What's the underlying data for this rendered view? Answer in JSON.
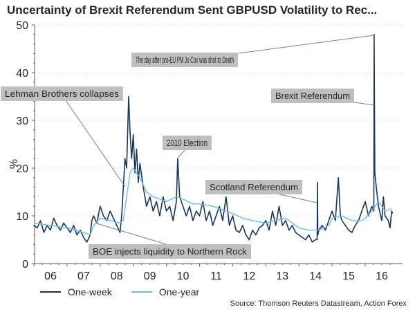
{
  "chart_data": {
    "type": "line",
    "title": "Uncertainty of Brexit Referendum Sent GBPUSD Volatility to Rec...",
    "ylabel": "%",
    "xlabel": "",
    "ylim": [
      0,
      50
    ],
    "yticks": [
      0,
      10,
      20,
      30,
      40,
      50
    ],
    "xlim": [
      2006,
      2016.9
    ],
    "xtick_labels": [
      "06",
      "07",
      "08",
      "09",
      "10",
      "11",
      "12",
      "13",
      "14",
      "15",
      "16"
    ],
    "grid": "horizontal dotted",
    "legend": "bottom",
    "colors": {
      "one_week": "#16365c",
      "one_year": "#6fb7f2",
      "annotation_box": "#bfbfbf"
    },
    "series": [
      {
        "name": "One-week",
        "points": [
          [
            2006.0,
            8
          ],
          [
            2006.1,
            7.5
          ],
          [
            2006.2,
            9
          ],
          [
            2006.3,
            6.5
          ],
          [
            2006.4,
            8
          ],
          [
            2006.5,
            7
          ],
          [
            2006.6,
            9.5
          ],
          [
            2006.7,
            8
          ],
          [
            2006.8,
            7
          ],
          [
            2006.9,
            8.5
          ],
          [
            2007.0,
            7.5
          ],
          [
            2007.1,
            6.5
          ],
          [
            2007.2,
            8
          ],
          [
            2007.3,
            6
          ],
          [
            2007.4,
            7
          ],
          [
            2007.5,
            5.5
          ],
          [
            2007.6,
            4.5
          ],
          [
            2007.7,
            6
          ],
          [
            2007.75,
            9
          ],
          [
            2007.8,
            10
          ],
          [
            2007.9,
            8.5
          ],
          [
            2008.0,
            12
          ],
          [
            2008.1,
            10
          ],
          [
            2008.2,
            9
          ],
          [
            2008.3,
            11
          ],
          [
            2008.4,
            9.5
          ],
          [
            2008.5,
            8
          ],
          [
            2008.6,
            6.5
          ],
          [
            2008.65,
            10
          ],
          [
            2008.7,
            16
          ],
          [
            2008.75,
            22
          ],
          [
            2008.8,
            20
          ],
          [
            2008.86,
            35
          ],
          [
            2008.9,
            28
          ],
          [
            2008.95,
            22
          ],
          [
            2009.0,
            27
          ],
          [
            2009.05,
            19
          ],
          [
            2009.1,
            24
          ],
          [
            2009.15,
            17
          ],
          [
            2009.2,
            21
          ],
          [
            2009.3,
            16
          ],
          [
            2009.4,
            12
          ],
          [
            2009.5,
            14
          ],
          [
            2009.6,
            11
          ],
          [
            2009.7,
            13
          ],
          [
            2009.8,
            10
          ],
          [
            2009.9,
            14
          ],
          [
            2010.0,
            11
          ],
          [
            2010.1,
            12
          ],
          [
            2010.2,
            9
          ],
          [
            2010.3,
            13
          ],
          [
            2010.34,
            22
          ],
          [
            2010.4,
            14
          ],
          [
            2010.5,
            12
          ],
          [
            2010.6,
            10
          ],
          [
            2010.7,
            12
          ],
          [
            2010.8,
            9
          ],
          [
            2010.9,
            11
          ],
          [
            2011.0,
            10
          ],
          [
            2011.1,
            13
          ],
          [
            2011.2,
            9
          ],
          [
            2011.3,
            11
          ],
          [
            2011.4,
            8
          ],
          [
            2011.5,
            10
          ],
          [
            2011.6,
            12
          ],
          [
            2011.7,
            9
          ],
          [
            2011.8,
            14
          ],
          [
            2011.9,
            8
          ],
          [
            2012.0,
            10
          ],
          [
            2012.1,
            7
          ],
          [
            2012.2,
            6.5
          ],
          [
            2012.3,
            8
          ],
          [
            2012.4,
            6
          ],
          [
            2012.5,
            5
          ],
          [
            2012.6,
            7
          ],
          [
            2012.7,
            6
          ],
          [
            2012.8,
            7.5
          ],
          [
            2012.9,
            8
          ],
          [
            2013.0,
            9
          ],
          [
            2013.1,
            7
          ],
          [
            2013.2,
            11
          ],
          [
            2013.3,
            8
          ],
          [
            2013.4,
            12
          ],
          [
            2013.5,
            8
          ],
          [
            2013.6,
            9
          ],
          [
            2013.7,
            7
          ],
          [
            2013.8,
            8
          ],
          [
            2013.9,
            6.5
          ],
          [
            2014.0,
            6
          ],
          [
            2014.1,
            5.5
          ],
          [
            2014.2,
            5
          ],
          [
            2014.3,
            6
          ],
          [
            2014.4,
            4.5
          ],
          [
            2014.5,
            5
          ],
          [
            2014.55,
            5
          ],
          [
            2014.56,
            17
          ],
          [
            2014.57,
            6
          ],
          [
            2014.6,
            7
          ],
          [
            2014.7,
            8
          ],
          [
            2014.8,
            7
          ],
          [
            2014.9,
            9
          ],
          [
            2015.0,
            11
          ],
          [
            2015.1,
            9
          ],
          [
            2015.19,
            18
          ],
          [
            2015.25,
            10
          ],
          [
            2015.3,
            9
          ],
          [
            2015.4,
            8
          ],
          [
            2015.5,
            7
          ],
          [
            2015.6,
            6.5
          ],
          [
            2015.7,
            8
          ],
          [
            2015.8,
            9
          ],
          [
            2015.9,
            11
          ],
          [
            2016.0,
            13
          ],
          [
            2016.1,
            10
          ],
          [
            2016.2,
            12
          ],
          [
            2016.26,
            11
          ],
          [
            2016.27,
            48
          ],
          [
            2016.29,
            19
          ],
          [
            2016.35,
            15
          ],
          [
            2016.4,
            12
          ],
          [
            2016.5,
            9
          ],
          [
            2016.55,
            14
          ],
          [
            2016.6,
            10
          ],
          [
            2016.7,
            9
          ],
          [
            2016.75,
            7.5
          ],
          [
            2016.8,
            11
          ],
          [
            2016.83,
            10.5
          ]
        ]
      },
      {
        "name": "One-year",
        "points": [
          [
            2006.0,
            8.5
          ],
          [
            2006.5,
            8
          ],
          [
            2007.0,
            7.5
          ],
          [
            2007.5,
            6.5
          ],
          [
            2007.7,
            6
          ],
          [
            2007.8,
            8
          ],
          [
            2008.0,
            9.5
          ],
          [
            2008.3,
            9
          ],
          [
            2008.6,
            8.5
          ],
          [
            2008.7,
            9
          ],
          [
            2008.8,
            14
          ],
          [
            2008.9,
            19
          ],
          [
            2009.0,
            20
          ],
          [
            2009.2,
            18
          ],
          [
            2009.4,
            15
          ],
          [
            2009.6,
            14
          ],
          [
            2009.8,
            13.5
          ],
          [
            2010.0,
            13
          ],
          [
            2010.3,
            14
          ],
          [
            2010.5,
            13.5
          ],
          [
            2010.8,
            12.5
          ],
          [
            2011.0,
            12.5
          ],
          [
            2011.4,
            12
          ],
          [
            2011.8,
            11
          ],
          [
            2012.0,
            10.5
          ],
          [
            2012.3,
            9.5
          ],
          [
            2012.6,
            9
          ],
          [
            2013.0,
            8.5
          ],
          [
            2013.3,
            9
          ],
          [
            2013.6,
            9.5
          ],
          [
            2013.9,
            8
          ],
          [
            2014.0,
            7.5
          ],
          [
            2014.3,
            7
          ],
          [
            2014.6,
            7
          ],
          [
            2014.9,
            8
          ],
          [
            2015.0,
            9.5
          ],
          [
            2015.3,
            10
          ],
          [
            2015.6,
            9
          ],
          [
            2015.9,
            9
          ],
          [
            2016.0,
            9.5
          ],
          [
            2016.2,
            11
          ],
          [
            2016.4,
            13
          ],
          [
            2016.5,
            12
          ],
          [
            2016.6,
            11
          ],
          [
            2016.8,
            11.5
          ]
        ]
      }
    ],
    "annotations": [
      {
        "text": "The day after pro-EU PM Jo Cox was shot to Death"
      },
      {
        "text": "Brexit Referendum"
      },
      {
        "text": "Lehman Brothers collapses"
      },
      {
        "text": "2010 Election"
      },
      {
        "text": "Scotland Referendum"
      },
      {
        "text": "BOE injects liquidity to Northern Rock"
      }
    ],
    "source": "Source: Thomson Reuters Datastream, Action Forex"
  }
}
